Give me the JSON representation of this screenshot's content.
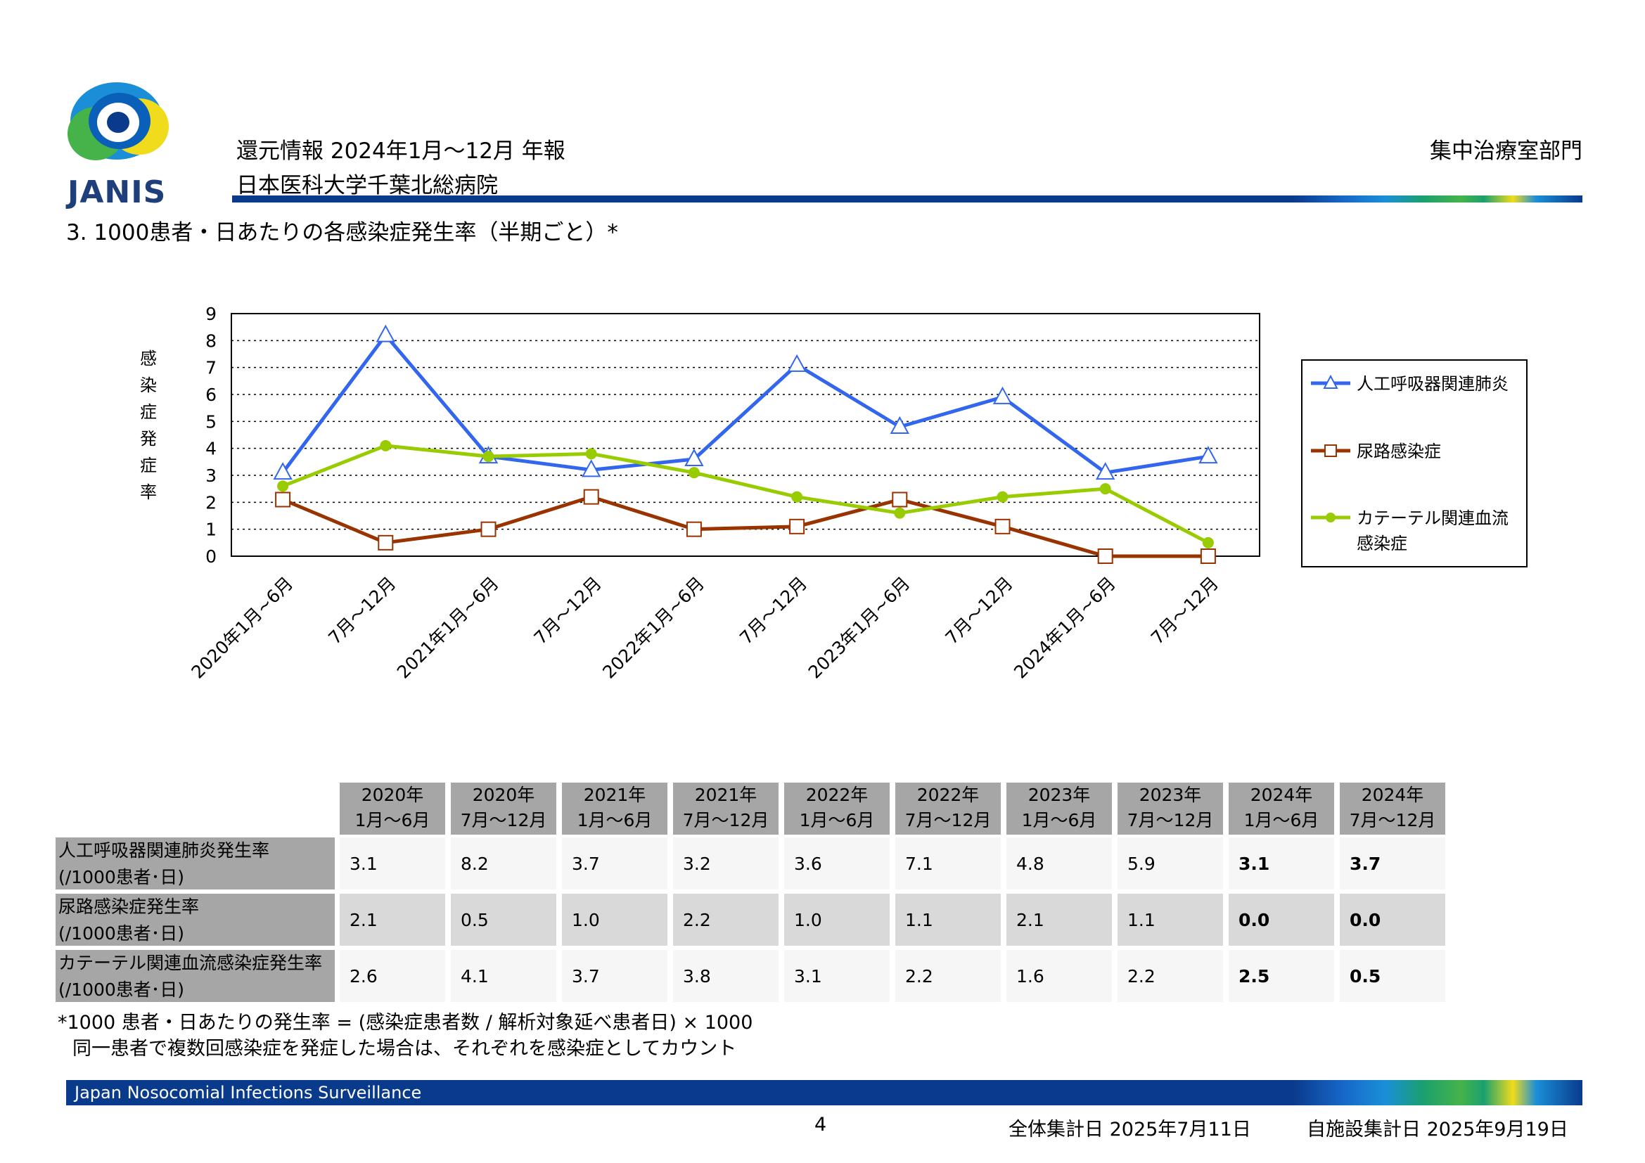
{
  "header": {
    "logo_text": "JANIS",
    "report_title": "還元情報 2024年1月～12月 年報",
    "hospital": "日本医科大学千葉北総病院",
    "department": "集中治療室部門"
  },
  "section_title": "3.  1000患者・日あたりの各感染症発生率（半期ごと）*",
  "chart_data": {
    "type": "line",
    "ylabel": "感染症発症率",
    "ylim": [
      0,
      9
    ],
    "yticks": [
      "0",
      "1",
      "2",
      "3",
      "4",
      "5",
      "6",
      "7",
      "8",
      "9"
    ],
    "grid": "horizontal dotted",
    "legend_position": "right",
    "categories": [
      "2020年1月~6月",
      "7月～12月",
      "2021年1月~6月",
      "7月～12月",
      "2022年1月~6月",
      "7月～12月",
      "2023年1月~6月",
      "7月～12月",
      "2024年1月~6月",
      "7月～12月"
    ],
    "series": [
      {
        "name": "人工呼吸器関連肺炎",
        "color": "#3366ee",
        "marker": "triangle-open",
        "values": [
          3.1,
          8.2,
          3.7,
          3.2,
          3.6,
          7.1,
          4.8,
          5.9,
          3.1,
          3.7
        ]
      },
      {
        "name": "尿路感染症",
        "color": "#993300",
        "marker": "square-open",
        "values": [
          2.1,
          0.5,
          1.0,
          2.2,
          1.0,
          1.1,
          2.1,
          1.1,
          0.0,
          0.0
        ]
      },
      {
        "name": "カテーテル関連血流感染症",
        "color": "#99cc00",
        "marker": "circle-filled",
        "values": [
          2.6,
          4.1,
          3.7,
          3.8,
          3.1,
          2.2,
          1.6,
          2.2,
          2.5,
          0.5
        ]
      }
    ],
    "legend_labels": [
      [
        "人工呼吸器関連肺炎"
      ],
      [
        "尿路感染症"
      ],
      [
        "カテーテル関連血流",
        "感染症"
      ]
    ]
  },
  "table": {
    "headers": [
      [
        "2020年",
        "1月～6月"
      ],
      [
        "2020年",
        "7月～12月"
      ],
      [
        "2021年",
        "1月～6月"
      ],
      [
        "2021年",
        "7月～12月"
      ],
      [
        "2022年",
        "1月～6月"
      ],
      [
        "2022年",
        "7月～12月"
      ],
      [
        "2023年",
        "1月～6月"
      ],
      [
        "2023年",
        "7月～12月"
      ],
      [
        "2024年",
        "1月～6月"
      ],
      [
        "2024年",
        "7月～12月"
      ]
    ],
    "rows": [
      {
        "label": [
          "人工呼吸器関連肺炎発生率",
          "(/1000患者･日)"
        ],
        "values": [
          "3.1",
          "8.2",
          "3.7",
          "3.2",
          "3.6",
          "7.1",
          "4.8",
          "5.9",
          "3.1",
          "3.7"
        ]
      },
      {
        "label": [
          "尿路感染症発生率",
          "(/1000患者･日)"
        ],
        "values": [
          "2.1",
          "0.5",
          "1.0",
          "2.2",
          "1.0",
          "1.1",
          "2.1",
          "1.1",
          "0.0",
          "0.0"
        ]
      },
      {
        "label": [
          "カテーテル関連血流感染症発生率",
          "(/1000患者･日)"
        ],
        "values": [
          "2.6",
          "4.1",
          "3.7",
          "3.8",
          "3.1",
          "2.2",
          "1.6",
          "2.2",
          "2.5",
          "0.5"
        ]
      }
    ]
  },
  "footnotes": {
    "line1": "*1000 患者・日あたりの発生率 = (感染症患者数 / 解析対象延べ患者日) × 1000",
    "line2": "同一患者で複数回感染症を発症した場合は、それぞれを感染症としてカウント"
  },
  "footer": {
    "band_text": "Japan Nosocomial Infections Surveillance",
    "page_number": "4",
    "overall_date": "全体集計日 2025年7月11日",
    "facility_date": "自施設集計日 2025年9月19日"
  }
}
